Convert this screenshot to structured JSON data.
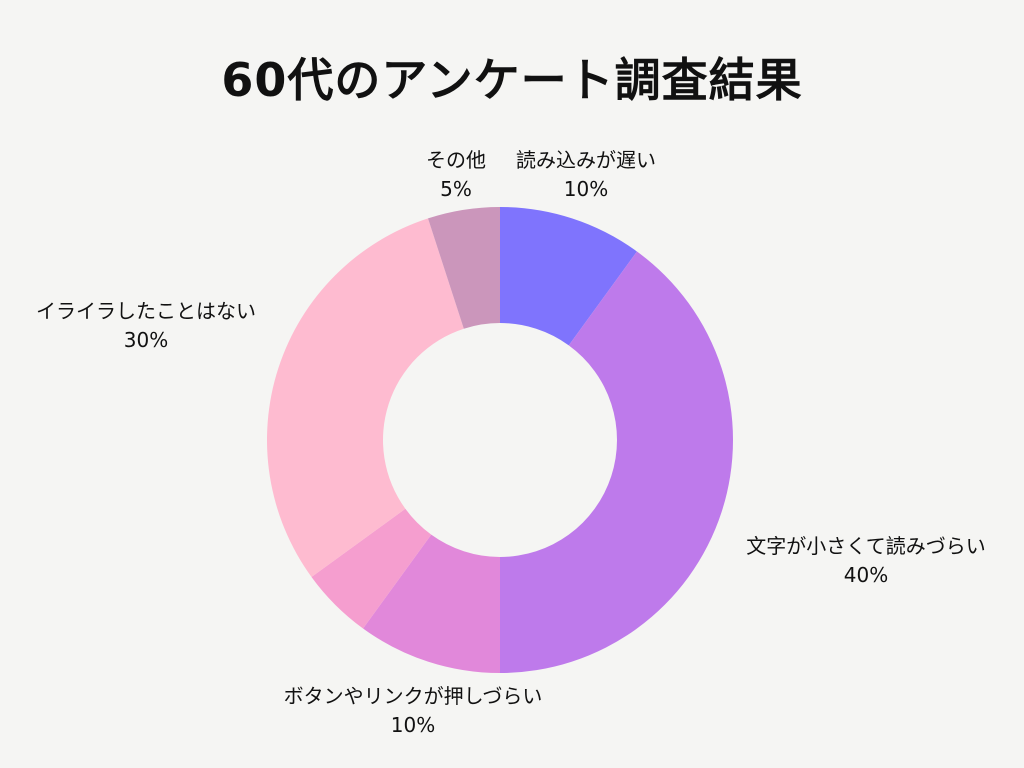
{
  "title": "60代のアンケート調査結果",
  "chart_data": {
    "type": "pie",
    "variant": "donut",
    "title": "60代のアンケート調査結果",
    "start_angle_deg": 0,
    "direction": "clockwise",
    "slices": [
      {
        "label": "読み込みが遅い",
        "value": 10,
        "display": "10%",
        "color": "#7f74fd"
      },
      {
        "label": "文字が小さくて読みづらい",
        "value": 40,
        "display": "40%",
        "color": "#be7aeb"
      },
      {
        "label": "ボタンやリンクが押しづらい",
        "value": 10,
        "display": "10%",
        "color": "#e188da"
      },
      {
        "label": "",
        "value": 5,
        "display": "",
        "color": "#f59ecf"
      },
      {
        "label": "イライラしたことはない",
        "value": 30,
        "display": "30%",
        "color": "#febbd0"
      },
      {
        "label": "その他",
        "value": 5,
        "display": "5%",
        "color": "#cb96bb"
      }
    ]
  },
  "labels": {
    "slow": {
      "name": "読み込みが遅い",
      "pct": "10%"
    },
    "small_text": {
      "name": "文字が小さくて読みづらい",
      "pct": "40%"
    },
    "buttons": {
      "name": "ボタンやリンクが押しづらい",
      "pct": "10%"
    },
    "never": {
      "name": "イライラしたことはない",
      "pct": "30%"
    },
    "other": {
      "name": "その他",
      "pct": "5%"
    }
  }
}
